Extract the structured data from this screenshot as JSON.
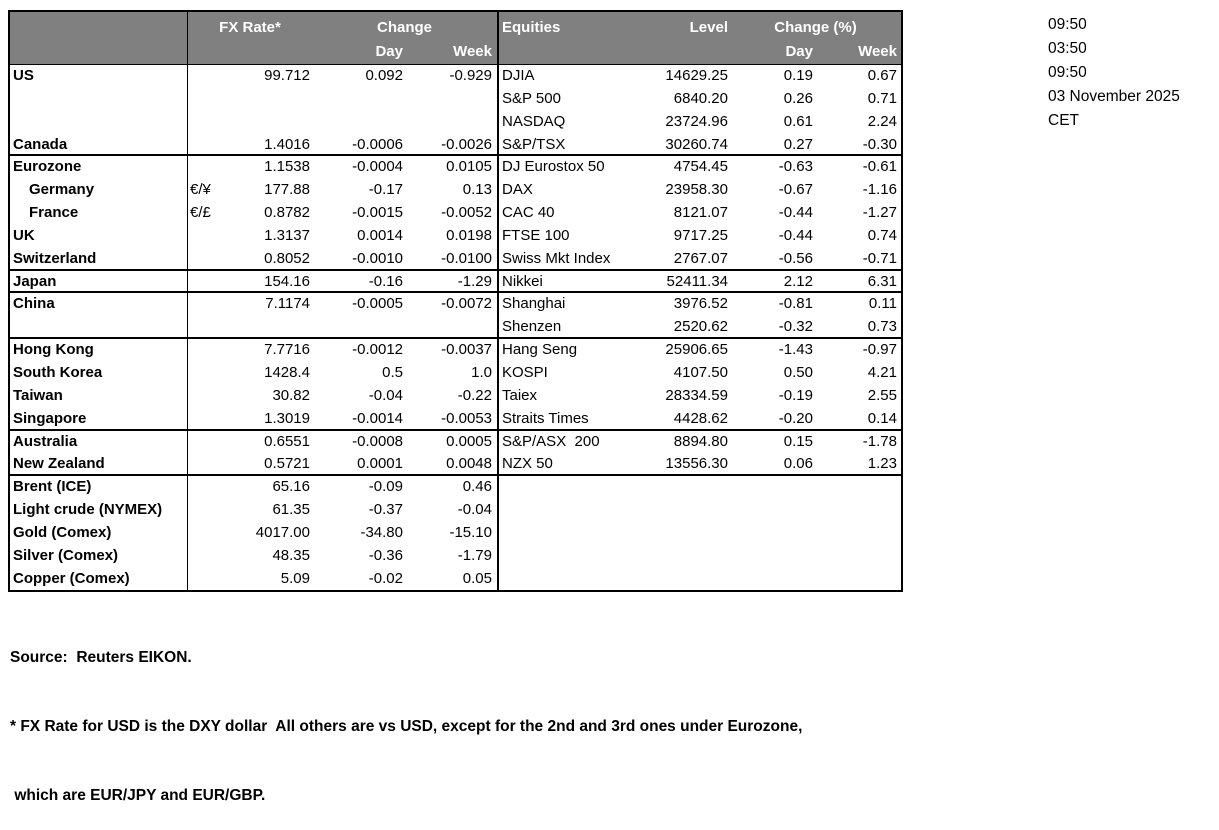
{
  "colors": {
    "header_bg": "#808080",
    "header_text": "#ffffff",
    "border": "#000000",
    "body_text": "#000000"
  },
  "clock": {
    "lines": [
      "09:50",
      "03:50",
      "09:50",
      "03 November 2025",
      "CET"
    ]
  },
  "table": {
    "fx_header": {
      "rate": "FX Rate*",
      "change": "Change",
      "day": "Day",
      "week": "Week"
    },
    "eq_header": {
      "title": "Equities",
      "level": "Level",
      "change": "Change (%)",
      "day": "Day",
      "week": "Week"
    },
    "rows": [
      {
        "name": "US",
        "indent": false,
        "pair": "",
        "rate": "99.712",
        "fx_day": "0.092",
        "fx_week": "-0.929",
        "equity": "DJIA",
        "level": "14629.25",
        "eq_day": "0.19",
        "eq_week": "0.67",
        "group_end": false
      },
      {
        "name": "",
        "indent": false,
        "pair": "",
        "rate": "",
        "fx_day": "",
        "fx_week": "",
        "equity": "S&P 500",
        "level": "6840.20",
        "eq_day": "0.26",
        "eq_week": "0.71",
        "group_end": false
      },
      {
        "name": "",
        "indent": false,
        "pair": "",
        "rate": "",
        "fx_day": "",
        "fx_week": "",
        "equity": "NASDAQ",
        "level": "23724.96",
        "eq_day": "0.61",
        "eq_week": "2.24",
        "group_end": false
      },
      {
        "name": "Canada",
        "indent": false,
        "pair": "",
        "rate": "1.4016",
        "fx_day": "-0.0006",
        "fx_week": "-0.0026",
        "equity": "S&P/TSX",
        "level": "30260.74",
        "eq_day": "0.27",
        "eq_week": "-0.30",
        "group_end": true
      },
      {
        "name": "Eurozone",
        "indent": false,
        "pair": "",
        "rate": "1.1538",
        "fx_day": "-0.0004",
        "fx_week": "0.0105",
        "equity": "DJ Eurostox 50",
        "level": "4754.45",
        "eq_day": "-0.63",
        "eq_week": "-0.61",
        "group_end": false
      },
      {
        "name": "Germany",
        "indent": true,
        "pair": "€/¥",
        "rate": "177.88",
        "fx_day": "-0.17",
        "fx_week": "0.13",
        "equity": "DAX",
        "level": "23958.30",
        "eq_day": "-0.67",
        "eq_week": "-1.16",
        "group_end": false
      },
      {
        "name": "France",
        "indent": true,
        "pair": "€/£",
        "rate": "0.8782",
        "fx_day": "-0.0015",
        "fx_week": "-0.0052",
        "equity": "CAC 40",
        "level": "8121.07",
        "eq_day": "-0.44",
        "eq_week": "-1.27",
        "group_end": false
      },
      {
        "name": "UK",
        "indent": false,
        "pair": "",
        "rate": "1.3137",
        "fx_day": "0.0014",
        "fx_week": "0.0198",
        "equity": "FTSE 100",
        "level": "9717.25",
        "eq_day": "-0.44",
        "eq_week": "0.74",
        "group_end": false
      },
      {
        "name": "Switzerland",
        "indent": false,
        "pair": "",
        "rate": "0.8052",
        "fx_day": "-0.0010",
        "fx_week": "-0.0100",
        "equity": "Swiss Mkt Index",
        "level": "2767.07",
        "eq_day": "-0.56",
        "eq_week": "-0.71",
        "group_end": true
      },
      {
        "name": "Japan",
        "indent": false,
        "pair": "",
        "rate": "154.16",
        "fx_day": "-0.16",
        "fx_week": "-1.29",
        "equity": "Nikkei",
        "level": "52411.34",
        "eq_day": "2.12",
        "eq_week": "6.31",
        "group_end": true
      },
      {
        "name": "China",
        "indent": false,
        "pair": "",
        "rate": "7.1174",
        "fx_day": "-0.0005",
        "fx_week": "-0.0072",
        "equity": "Shanghai",
        "level": "3976.52",
        "eq_day": "-0.81",
        "eq_week": "0.11",
        "group_end": false
      },
      {
        "name": "",
        "indent": false,
        "pair": "",
        "rate": "",
        "fx_day": "",
        "fx_week": "",
        "equity": "Shenzen",
        "level": "2520.62",
        "eq_day": "-0.32",
        "eq_week": "0.73",
        "group_end": true
      },
      {
        "name": "Hong Kong",
        "indent": false,
        "pair": "",
        "rate": "7.7716",
        "fx_day": "-0.0012",
        "fx_week": "-0.0037",
        "equity": "Hang Seng",
        "level": "25906.65",
        "eq_day": "-1.43",
        "eq_week": "-0.97",
        "group_end": false
      },
      {
        "name": "South Korea",
        "indent": false,
        "pair": "",
        "rate": "1428.4",
        "fx_day": "0.5",
        "fx_week": "1.0",
        "equity": "KOSPI",
        "level": "4107.50",
        "eq_day": "0.50",
        "eq_week": "4.21",
        "group_end": false
      },
      {
        "name": "Taiwan",
        "indent": false,
        "pair": "",
        "rate": "30.82",
        "fx_day": "-0.04",
        "fx_week": "-0.22",
        "equity": "Taiex",
        "level": "28334.59",
        "eq_day": "-0.19",
        "eq_week": "2.55",
        "group_end": false
      },
      {
        "name": "Singapore",
        "indent": false,
        "pair": "",
        "rate": "1.3019",
        "fx_day": "-0.0014",
        "fx_week": "-0.0053",
        "equity": "Straits Times",
        "level": "4428.62",
        "eq_day": "-0.20",
        "eq_week": "0.14",
        "group_end": true
      },
      {
        "name": "Australia",
        "indent": false,
        "pair": "",
        "rate": "0.6551",
        "fx_day": "-0.0008",
        "fx_week": "0.0005",
        "equity": "S&P/ASX  200",
        "level": "8894.80",
        "eq_day": "0.15",
        "eq_week": "-1.78",
        "group_end": false
      },
      {
        "name": "New Zealand",
        "indent": false,
        "pair": "",
        "rate": "0.5721",
        "fx_day": "0.0001",
        "fx_week": "0.0048",
        "equity": "NZX 50",
        "level": "13556.30",
        "eq_day": "0.06",
        "eq_week": "1.23",
        "group_end": true
      },
      {
        "name": "Brent (ICE)",
        "indent": false,
        "pair": "",
        "rate": "65.16",
        "fx_day": "-0.09",
        "fx_week": "0.46",
        "equity": "",
        "level": "",
        "eq_day": "",
        "eq_week": "",
        "group_end": false
      },
      {
        "name": "Light crude (NYMEX)",
        "indent": false,
        "pair": "",
        "rate": "61.35",
        "fx_day": "-0.37",
        "fx_week": "-0.04",
        "equity": "",
        "level": "",
        "eq_day": "",
        "eq_week": "",
        "group_end": false
      },
      {
        "name": "Gold (Comex)",
        "indent": false,
        "pair": "",
        "rate": "4017.00",
        "fx_day": "-34.80",
        "fx_week": "-15.10",
        "equity": "",
        "level": "",
        "eq_day": "",
        "eq_week": "",
        "group_end": false
      },
      {
        "name": "Silver (Comex)",
        "indent": false,
        "pair": "",
        "rate": "48.35",
        "fx_day": "-0.36",
        "fx_week": "-1.79",
        "equity": "",
        "level": "",
        "eq_day": "",
        "eq_week": "",
        "group_end": false
      },
      {
        "name": "Copper (Comex)",
        "indent": false,
        "pair": "",
        "rate": "5.09",
        "fx_day": "-0.02",
        "fx_week": "0.05",
        "equity": "",
        "level": "",
        "eq_day": "",
        "eq_week": "",
        "group_end": false
      }
    ]
  },
  "footer": {
    "source": "Source:  Reuters EIKON.",
    "note1": "* FX Rate for USD is the DXY dollar  All others are vs USD, except for the 2nd and 3rd ones under Eurozone,",
    "note2": " which are EUR/JPY and EUR/GBP."
  }
}
